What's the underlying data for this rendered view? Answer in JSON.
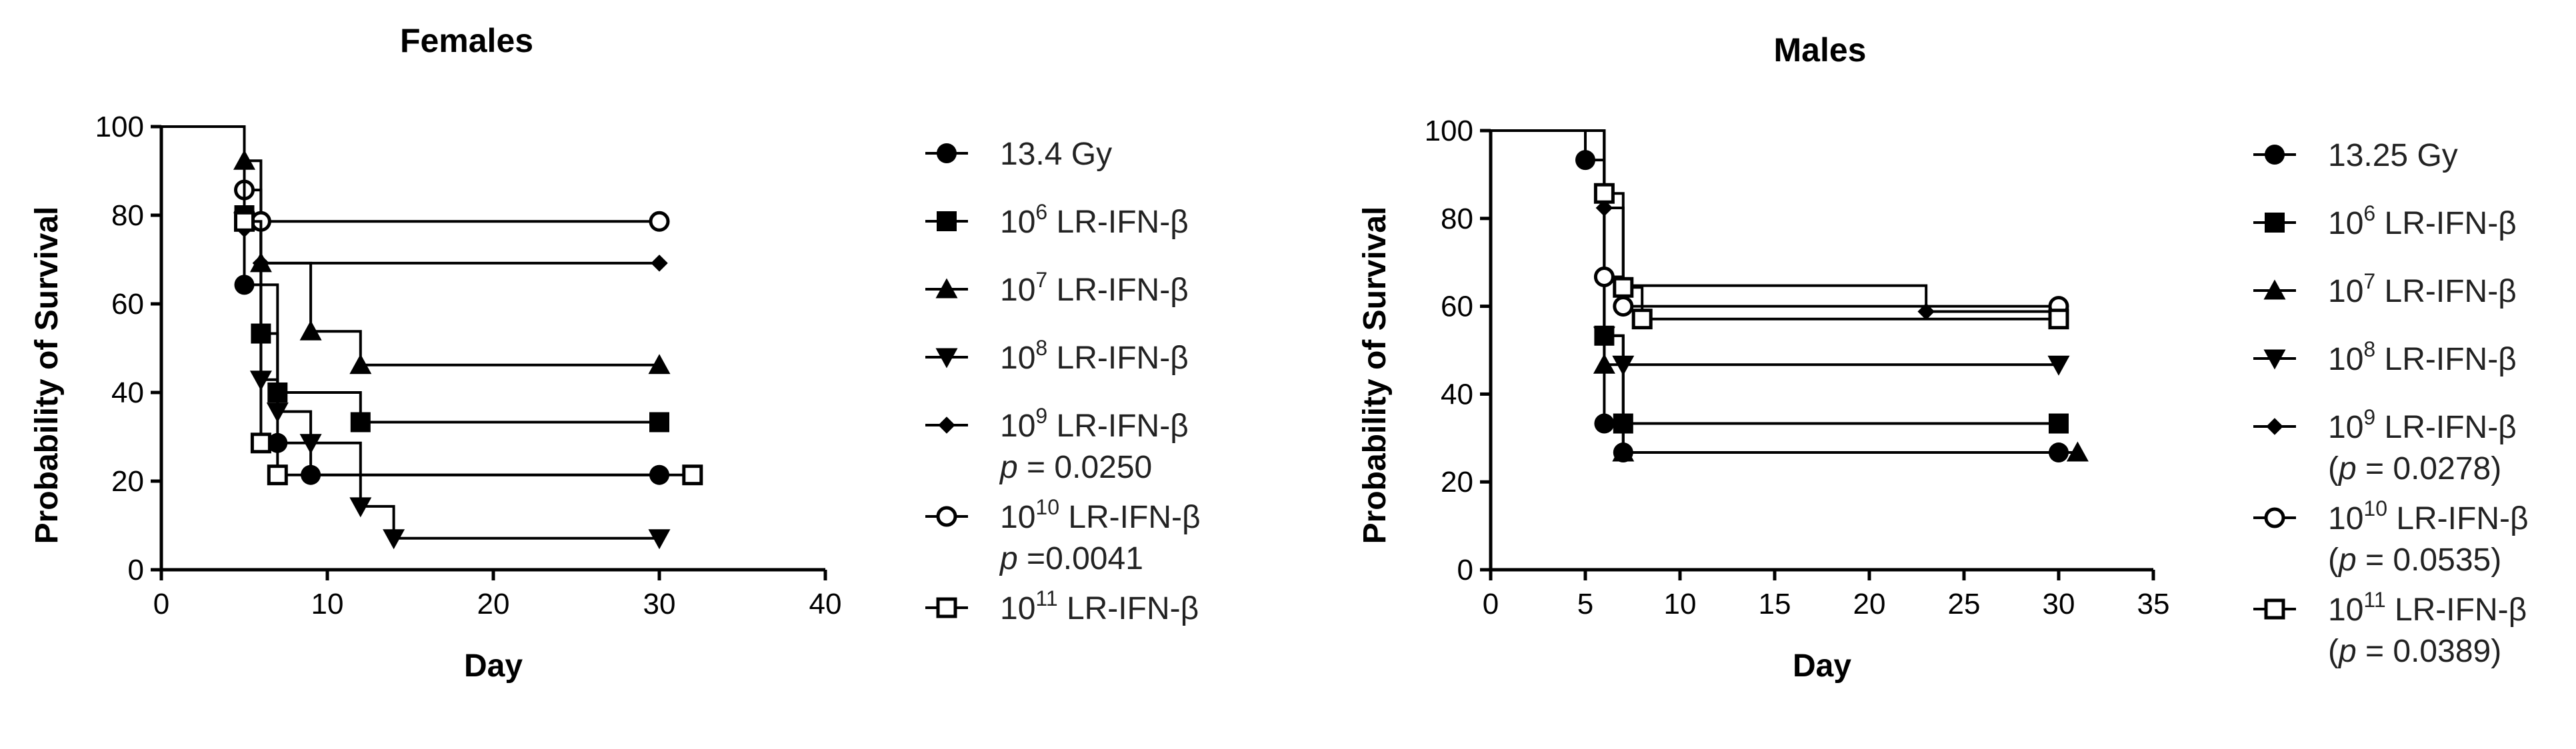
{
  "chart_data": [
    {
      "type": "line",
      "subtype": "kaplan-meier survival",
      "title": "Females",
      "xlabel": "Day",
      "ylabel": "Probability of Survival",
      "xlim": [
        0,
        40
      ],
      "ylim": [
        0,
        100
      ],
      "xticks": [
        0,
        10,
        20,
        30,
        40
      ],
      "yticks": [
        0,
        20,
        40,
        60,
        80,
        100
      ],
      "legend_position": "right",
      "series": [
        {
          "name": "13.4 Gy",
          "marker": "circle-filled",
          "steps": [
            [
              0,
              100
            ],
            [
              5,
              64.3
            ],
            [
              7,
              28.6
            ],
            [
              9,
              21.4
            ]
          ],
          "end": 30,
          "censor": [
            [
              30,
              21.4
            ]
          ]
        },
        {
          "name": "10^6 LR-IFN-β",
          "name_base": "10",
          "name_exp": "6",
          "name_rest": " LR-IFN-β",
          "marker": "square-filled",
          "steps": [
            [
              0,
              100
            ],
            [
              5,
              80
            ],
            [
              6,
              53.3
            ],
            [
              7,
              40
            ],
            [
              12,
              33.3
            ]
          ],
          "end": 30,
          "censor": [
            [
              30,
              33.3
            ]
          ]
        },
        {
          "name": "10^7 LR-IFN-β",
          "name_base": "10",
          "name_exp": "7",
          "name_rest": " LR-IFN-β",
          "marker": "triangle-up",
          "steps": [
            [
              0,
              100
            ],
            [
              5,
              92.3
            ],
            [
              6,
              69.2
            ],
            [
              9,
              53.8
            ],
            [
              12,
              46.2
            ]
          ],
          "end": 30,
          "censor": [
            [
              30,
              46.2
            ]
          ]
        },
        {
          "name": "10^8 LR-IFN-β",
          "name_base": "10",
          "name_exp": "8",
          "name_rest": " LR-IFN-β",
          "marker": "triangle-down",
          "steps": [
            [
              0,
              100
            ],
            [
              5,
              78.6
            ],
            [
              6,
              42.9
            ],
            [
              7,
              35.7
            ],
            [
              9,
              28.6
            ],
            [
              12,
              14.3
            ],
            [
              14,
              7.1
            ]
          ],
          "end": 30,
          "censor": [
            [
              30,
              7.1
            ]
          ]
        },
        {
          "name": "10^9 LR-IFN-β",
          "name_base": "10",
          "name_exp": "9",
          "name_rest": " LR-IFN-β",
          "p_text": "p = 0.0250",
          "marker": "diamond-filled",
          "steps": [
            [
              0,
              100
            ],
            [
              5,
              76.9
            ],
            [
              6,
              69.2
            ]
          ],
          "end": 30,
          "censor": [
            [
              30,
              69.2
            ]
          ]
        },
        {
          "name": "10^10 LR-IFN-β",
          "name_base": "10",
          "name_exp": "10",
          "name_rest": " LR-IFN-β",
          "p_text": "p =0.0041",
          "marker": "circle-open",
          "steps": [
            [
              0,
              100
            ],
            [
              5,
              85.7
            ],
            [
              6,
              78.6
            ]
          ],
          "end": 30,
          "censor": [
            [
              30,
              78.6
            ]
          ]
        },
        {
          "name": "10^11 LR-IFN-β",
          "name_base": "10",
          "name_exp": "11",
          "name_rest": " LR-IFN-β",
          "marker": "square-open",
          "steps": [
            [
              0,
              100
            ],
            [
              5,
              78.6
            ],
            [
              6,
              28.6
            ],
            [
              7,
              21.4
            ]
          ],
          "end": 32,
          "censor": [
            [
              32,
              21.4
            ]
          ]
        }
      ]
    },
    {
      "type": "line",
      "subtype": "kaplan-meier survival",
      "title": "Males",
      "xlabel": "Day",
      "ylabel": "Probability of Survival",
      "xlim": [
        0,
        35
      ],
      "ylim": [
        0,
        100
      ],
      "xticks": [
        0,
        5,
        10,
        15,
        20,
        25,
        30,
        35
      ],
      "yticks": [
        0,
        20,
        40,
        60,
        80,
        100
      ],
      "legend_position": "right",
      "series": [
        {
          "name": "13.25 Gy",
          "marker": "circle-filled",
          "steps": [
            [
              0,
              100
            ],
            [
              5,
              93.3
            ],
            [
              6,
              33.3
            ],
            [
              7,
              26.7
            ]
          ],
          "end": 30,
          "censor": [
            [
              30,
              26.7
            ]
          ]
        },
        {
          "name": "10^6 LR-IFN-β",
          "name_base": "10",
          "name_exp": "6",
          "name_rest": " LR-IFN-β",
          "marker": "square-filled",
          "steps": [
            [
              0,
              100
            ],
            [
              6,
              53.3
            ],
            [
              7,
              33.3
            ]
          ],
          "end": 30,
          "censor": [
            [
              30,
              33.3
            ]
          ]
        },
        {
          "name": "10^7 LR-IFN-β",
          "name_base": "10",
          "name_exp": "7",
          "name_rest": " LR-IFN-β",
          "marker": "triangle-up",
          "steps": [
            [
              0,
              100
            ],
            [
              6,
              46.7
            ],
            [
              7,
              26.7
            ]
          ],
          "end": 31,
          "censor": [
            [
              31,
              26.7
            ]
          ]
        },
        {
          "name": "10^8 LR-IFN-β",
          "name_base": "10",
          "name_exp": "8",
          "name_rest": " LR-IFN-β",
          "marker": "triangle-down",
          "steps": [
            [
              0,
              100
            ],
            [
              6,
              53.3
            ],
            [
              7,
              46.7
            ]
          ],
          "end": 30,
          "censor": [
            [
              30,
              46.7
            ]
          ]
        },
        {
          "name": "10^9 LR-IFN-β",
          "name_base": "10",
          "name_exp": "9",
          "name_rest": " LR-IFN-β",
          "p_text": "(p = 0.0278)",
          "marker": "diamond-filled",
          "steps": [
            [
              0,
              100
            ],
            [
              6,
              82.4
            ],
            [
              7,
              64.7
            ],
            [
              23,
              58.8
            ]
          ],
          "end": 30,
          "censor": [
            [
              30,
              58.8
            ]
          ]
        },
        {
          "name": "10^10 LR-IFN-β",
          "name_base": "10",
          "name_exp": "10",
          "name_rest": " LR-IFN-β",
          "p_text": "(p = 0.0535)",
          "marker": "circle-open",
          "steps": [
            [
              0,
              100
            ],
            [
              6,
              66.7
            ],
            [
              7,
              60
            ]
          ],
          "end": 30,
          "censor": [
            [
              30,
              60
            ]
          ]
        },
        {
          "name": "10^11 LR-IFN-β",
          "name_base": "10",
          "name_exp": "11",
          "name_rest": " LR-IFN-β",
          "p_text": "(p = 0.0389)",
          "marker": "square-open",
          "steps": [
            [
              0,
              100
            ],
            [
              6,
              85.7
            ],
            [
              7,
              64.3
            ],
            [
              8,
              57.1
            ]
          ],
          "end": 30,
          "censor": [
            [
              30,
              57.1
            ]
          ]
        }
      ]
    }
  ]
}
